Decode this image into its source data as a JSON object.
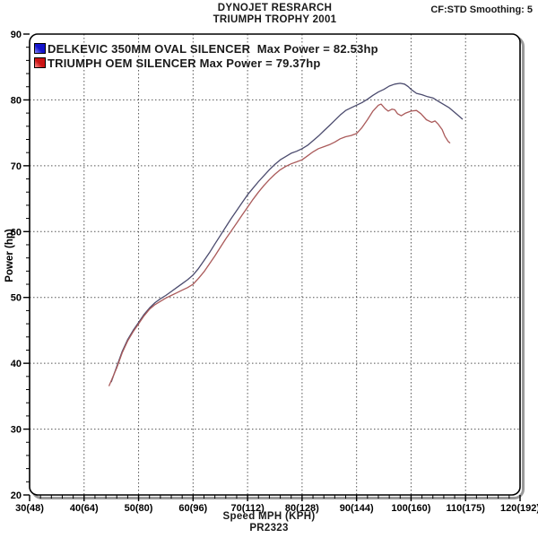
{
  "header": {
    "title_line1": "DYNOJET RESRARCH",
    "title_line2": "TRIUMPH TROPHY 2001",
    "info": "CF:STD Smoothing: 5"
  },
  "footer": {
    "xlabel": "Speed MPH (KPH)",
    "run_id": "PR2323"
  },
  "colors": {
    "background": "#ffffff",
    "frame": "#000000",
    "frame_shadow": "#9a9a9a",
    "grid": "#555555",
    "tick": "#000000"
  },
  "chart_data": {
    "type": "line",
    "title": "DYNOJET RESRARCH",
    "subtitle": "TRIUMPH TROPHY 2001",
    "xlabel": "Speed MPH (KPH)",
    "ylabel": "Power (hp)",
    "xlim": [
      30,
      120
    ],
    "ylim": [
      20,
      90
    ],
    "x_major_ticks": [
      30,
      40,
      50,
      60,
      70,
      80,
      90,
      100,
      110,
      120
    ],
    "x_tick_labels": [
      "30(48)",
      "40(64)",
      "50(80)",
      "60(96)",
      "70(112)",
      "80(128)",
      "90(144)",
      "100(160)",
      "110(175)",
      "120(192)"
    ],
    "y_major_ticks": [
      20,
      30,
      40,
      50,
      60,
      70,
      80,
      90
    ],
    "y_tick_labels": [
      "20",
      "30",
      "40",
      "50",
      "60",
      "70",
      "80",
      "90"
    ],
    "minor_tick_step": 2,
    "grid": "dashed-major",
    "legend_position": "top-left-inside",
    "series": [
      {
        "name": "DELKEVIC 350MM OVAL SILENCER",
        "max_power_hp": 82.53,
        "legend_label": "DELKEVIC 350MM OVAL SILENCER  Max Power = 82.53hp",
        "color": "#4b4b6e",
        "swatch_dark": "#1414cc",
        "swatch_light": "#8c8cff",
        "points": [
          [
            45.0,
            37.2
          ],
          [
            46,
            39.5
          ],
          [
            47,
            41.8
          ],
          [
            48,
            43.6
          ],
          [
            49,
            45.0
          ],
          [
            50,
            46.2
          ],
          [
            51,
            47.4
          ],
          [
            52,
            48.4
          ],
          [
            53,
            49.2
          ],
          [
            54,
            49.8
          ],
          [
            55,
            50.3
          ],
          [
            56,
            50.9
          ],
          [
            57,
            51.5
          ],
          [
            58,
            52.1
          ],
          [
            59,
            52.7
          ],
          [
            60,
            53.4
          ],
          [
            61,
            54.4
          ],
          [
            62,
            55.6
          ],
          [
            63,
            56.8
          ],
          [
            64,
            58.1
          ],
          [
            65,
            59.4
          ],
          [
            66,
            60.7
          ],
          [
            67,
            62.0
          ],
          [
            68,
            63.2
          ],
          [
            69,
            64.4
          ],
          [
            70,
            65.6
          ],
          [
            71,
            66.6
          ],
          [
            72,
            67.6
          ],
          [
            73,
            68.5
          ],
          [
            74,
            69.4
          ],
          [
            75,
            70.2
          ],
          [
            76,
            70.9
          ],
          [
            77,
            71.4
          ],
          [
            78,
            71.9
          ],
          [
            79,
            72.2
          ],
          [
            80,
            72.6
          ],
          [
            81,
            73.1
          ],
          [
            82,
            73.8
          ],
          [
            83,
            74.5
          ],
          [
            84,
            75.3
          ],
          [
            85,
            76.1
          ],
          [
            86,
            76.9
          ],
          [
            87,
            77.7
          ],
          [
            88,
            78.4
          ],
          [
            89,
            78.8
          ],
          [
            90,
            79.2
          ],
          [
            91,
            79.6
          ],
          [
            92,
            80.1
          ],
          [
            93,
            80.7
          ],
          [
            94,
            81.2
          ],
          [
            95,
            81.6
          ],
          [
            96,
            82.1
          ],
          [
            97,
            82.4
          ],
          [
            98,
            82.53
          ],
          [
            98.8,
            82.4
          ],
          [
            99.5,
            82.0
          ],
          [
            100,
            81.6
          ],
          [
            101,
            81.0
          ],
          [
            102,
            80.8
          ],
          [
            103,
            80.5
          ],
          [
            104,
            80.3
          ],
          [
            105,
            79.8
          ],
          [
            106,
            79.3
          ],
          [
            107,
            78.8
          ],
          [
            108,
            78.1
          ],
          [
            109,
            77.4
          ],
          [
            109.4,
            77.1
          ]
        ]
      },
      {
        "name": "TRIUMPH OEM SILENCER",
        "max_power_hp": 79.37,
        "legend_label": "TRIUMPH OEM SILENCER Max Power = 79.37hp",
        "color": "#aa5a5a",
        "swatch_dark": "#cc1414",
        "swatch_light": "#ff9090",
        "points": [
          [
            44.6,
            36.6
          ],
          [
            46,
            39.3
          ],
          [
            47,
            41.6
          ],
          [
            48,
            43.4
          ],
          [
            49,
            44.8
          ],
          [
            50,
            46.0
          ],
          [
            51,
            47.2
          ],
          [
            52,
            48.2
          ],
          [
            53,
            48.9
          ],
          [
            54,
            49.4
          ],
          [
            55,
            49.9
          ],
          [
            56,
            50.3
          ],
          [
            57,
            50.7
          ],
          [
            58,
            51.1
          ],
          [
            59,
            51.5
          ],
          [
            60,
            52.0
          ],
          [
            61,
            52.9
          ],
          [
            62,
            53.9
          ],
          [
            63,
            55.1
          ],
          [
            64,
            56.3
          ],
          [
            65,
            57.6
          ],
          [
            66,
            58.9
          ],
          [
            67,
            60.1
          ],
          [
            68,
            61.3
          ],
          [
            69,
            62.5
          ],
          [
            70,
            63.7
          ],
          [
            71,
            64.9
          ],
          [
            72,
            66.0
          ],
          [
            73,
            67.0
          ],
          [
            74,
            67.9
          ],
          [
            75,
            68.7
          ],
          [
            76,
            69.4
          ],
          [
            77,
            69.9
          ],
          [
            78,
            70.3
          ],
          [
            79,
            70.6
          ],
          [
            80,
            70.9
          ],
          [
            81,
            71.5
          ],
          [
            82,
            72.1
          ],
          [
            83,
            72.6
          ],
          [
            84,
            72.9
          ],
          [
            85,
            73.2
          ],
          [
            86,
            73.6
          ],
          [
            87,
            74.1
          ],
          [
            88,
            74.4
          ],
          [
            89,
            74.6
          ],
          [
            90,
            74.9
          ],
          [
            91,
            75.8
          ],
          [
            92,
            77.0
          ],
          [
            93,
            78.3
          ],
          [
            94,
            79.2
          ],
          [
            94.5,
            79.37
          ],
          [
            95.2,
            78.7
          ],
          [
            95.8,
            78.3
          ],
          [
            96.5,
            78.6
          ],
          [
            97,
            78.5
          ],
          [
            97.5,
            77.9
          ],
          [
            98.2,
            77.6
          ],
          [
            99,
            78.0
          ],
          [
            100,
            78.3
          ],
          [
            101,
            78.4
          ],
          [
            101.8,
            77.9
          ],
          [
            102.8,
            77.0
          ],
          [
            103.8,
            76.6
          ],
          [
            104.4,
            76.8
          ],
          [
            105,
            76.3
          ],
          [
            105.7,
            75.5
          ],
          [
            106.2,
            74.5
          ],
          [
            106.8,
            73.7
          ],
          [
            107.1,
            73.5
          ]
        ]
      }
    ]
  }
}
